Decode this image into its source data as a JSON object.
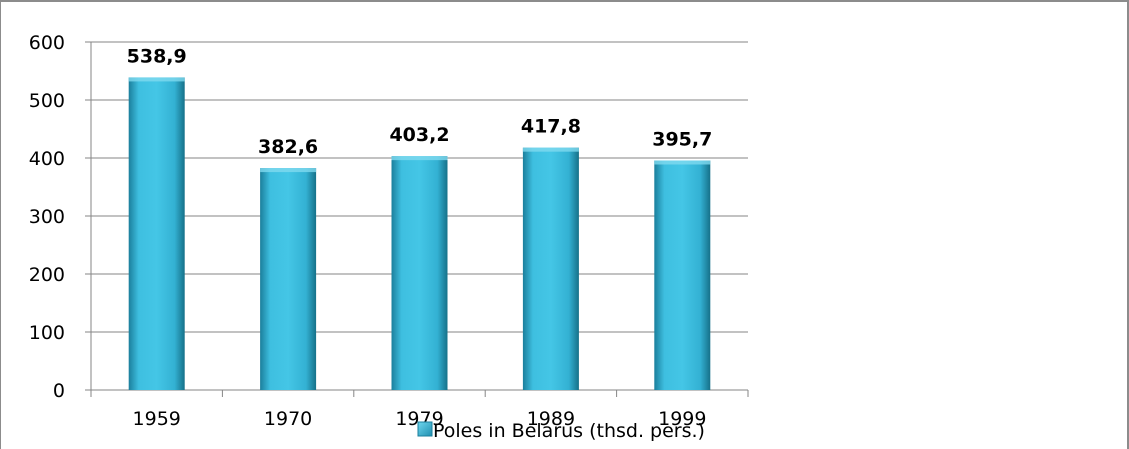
{
  "chart_data": {
    "type": "bar",
    "categories": [
      "1959",
      "1970",
      "1979",
      "1989",
      "1999"
    ],
    "series": [
      {
        "name": "Poles in Belarus (thsd. pers.)",
        "values": [
          538.9,
          382.6,
          403.2,
          417.8,
          395.7
        ],
        "value_labels": [
          "538,9",
          "382,6",
          "403,2",
          "417,8",
          "395,7"
        ]
      }
    ],
    "ylim": [
      0,
      600
    ],
    "yticks": [
      "0",
      "100",
      "200",
      "300",
      "400",
      "500",
      "600"
    ],
    "grid": true,
    "legend_position": "bottom",
    "colors": {
      "bar": "#3ebfe0",
      "bar_dark": "#1b7f9c",
      "grid": "#868686"
    }
  }
}
